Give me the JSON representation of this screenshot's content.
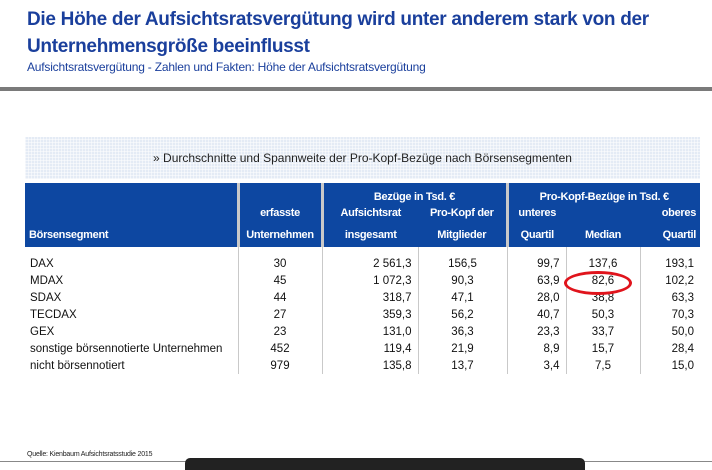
{
  "header": {
    "title": "Die Höhe der Aufsichtsratsvergütung wird unter anderem stark von der Unternehmensgröße beeinflusst",
    "subtitle": "Aufsichtsratsvergütung - Zahlen und Fakten: Höhe der Aufsichtsratsvergütung"
  },
  "banner": "» Durchschnitte und Spannweite der Pro-Kopf-Bezüge nach Börsensegmenten",
  "table": {
    "group_bezuege": "Bezüge in Tsd. €",
    "group_prokopf": "Pro-Kopf-Bezüge in Tsd. €",
    "col_segment": "Börsensegment",
    "col_count_1": "erfasste",
    "col_count_2": "Unternehmen",
    "col_ar_1": "Aufsichtsrat",
    "col_ar_2": "insgesamt",
    "col_pk_1": "Pro-Kopf der",
    "col_pk_2": "Mitglieder",
    "col_lq_1": "unteres",
    "col_lq_2": "Quartil",
    "col_med": "Median",
    "col_uq_1": "oberes",
    "col_uq_2": "Quartil",
    "rows": [
      [
        "DAX",
        "30",
        "2 561,3",
        "156,5",
        "99,7",
        "137,6",
        "193,1"
      ],
      [
        "MDAX",
        "45",
        "1 072,3",
        "90,3",
        "63,9",
        "82,6",
        "102,2"
      ],
      [
        "SDAX",
        "44",
        "318,7",
        "47,1",
        "28,0",
        "38,8",
        "63,3"
      ],
      [
        "TECDAX",
        "27",
        "359,3",
        "56,2",
        "40,7",
        "50,3",
        "70,3"
      ],
      [
        "GEX",
        "23",
        "131,0",
        "36,3",
        "23,3",
        "33,7",
        "50,0"
      ],
      [
        "sonstige börsennotierte Unternehmen",
        "452",
        "119,4",
        "21,9",
        "8,9",
        "15,7",
        "28,4"
      ],
      [
        "nicht börsennotiert",
        "979",
        "135,8",
        "13,7",
        "3,4",
        "7,5",
        "15,0"
      ]
    ]
  },
  "annotation_color": "#e0141c",
  "source": "Quelle: Kienbaum Aufsichtsratsstudie 2015"
}
